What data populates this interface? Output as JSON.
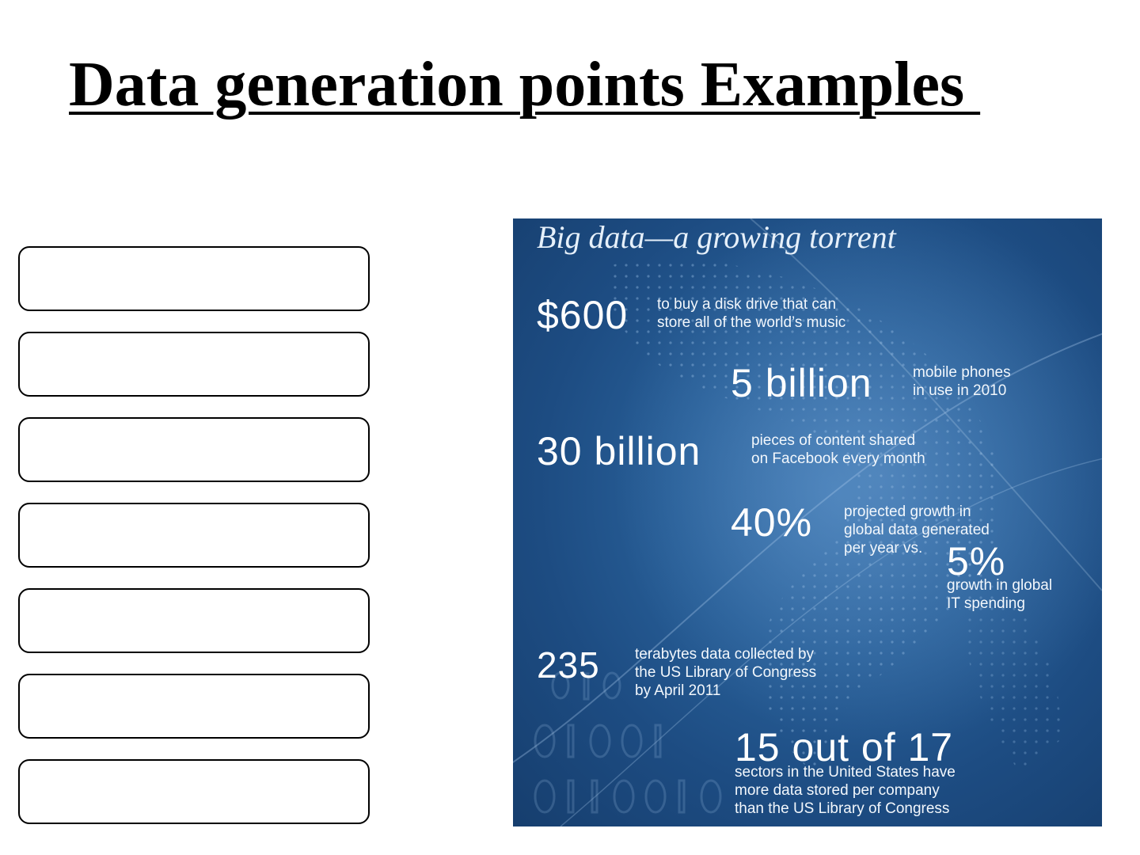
{
  "title": "Data generation points Examples ",
  "infographic": {
    "title": "Big data—a growing torrent",
    "stats": [
      {
        "value": "$600",
        "line1": "to buy a disk drive that can",
        "line2": "store all of the world’s music"
      },
      {
        "value": "5 billion",
        "line1": "mobile phones",
        "line2": "in use in 2010"
      },
      {
        "value": "30 billion",
        "line1": "pieces of content shared",
        "line2": "on Facebook every month"
      },
      {
        "value": "40%",
        "line1": "projected growth in",
        "line2": "global data generated",
        "line3": "per year vs."
      },
      {
        "value": "5%",
        "line1": "growth in global",
        "line2": "IT spending"
      },
      {
        "value": "235",
        "line1": "terabytes data collected by",
        "line2": "the US Library of Congress",
        "line3": "by April 2011"
      },
      {
        "value": "15 out of 17",
        "line1": "sectors in the United States have",
        "line2": "more data stored per company",
        "line3": "than the US Library of Congress"
      }
    ]
  }
}
